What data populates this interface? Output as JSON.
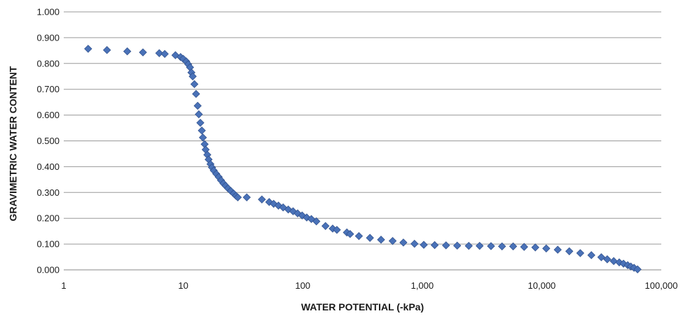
{
  "chart_data": {
    "type": "scatter",
    "x_scale": "log",
    "grid": "horizontal",
    "legend": "none",
    "marker_shape": "diamond",
    "marker_color": "#4a72b8",
    "xlabel": "WATER POTENTIAL (-kPa)",
    "ylabel": "GRAVIMETRIC WATER CONTENT",
    "xlim": [
      1,
      100000
    ],
    "ylim": [
      0,
      1
    ],
    "x_ticks": [
      1,
      10,
      100,
      1000,
      10000,
      100000
    ],
    "x_tick_labels": [
      "1",
      "10",
      "100",
      "1,000",
      "10,000",
      "100,000"
    ],
    "y_ticks": [
      0,
      0.1,
      0.2,
      0.3,
      0.4,
      0.5,
      0.6,
      0.7,
      0.8,
      0.9,
      1.0
    ],
    "y_tick_labels": [
      "0.000",
      "0.100",
      "0.200",
      "0.300",
      "0.400",
      "0.500",
      "0.600",
      "0.700",
      "0.800",
      "0.900",
      "1.000"
    ],
    "points": [
      [
        1.6,
        0.857
      ],
      [
        2.3,
        0.852
      ],
      [
        3.4,
        0.847
      ],
      [
        4.6,
        0.843
      ],
      [
        6.3,
        0.84
      ],
      [
        7.0,
        0.837
      ],
      [
        8.6,
        0.832
      ],
      [
        9.5,
        0.825
      ],
      [
        10.0,
        0.818
      ],
      [
        10.6,
        0.808
      ],
      [
        11.0,
        0.797
      ],
      [
        11.4,
        0.785
      ],
      [
        11.7,
        0.765
      ],
      [
        12.0,
        0.75
      ],
      [
        12.4,
        0.72
      ],
      [
        12.8,
        0.682
      ],
      [
        13.2,
        0.636
      ],
      [
        13.5,
        0.603
      ],
      [
        13.9,
        0.57
      ],
      [
        14.3,
        0.54
      ],
      [
        14.6,
        0.513
      ],
      [
        15.1,
        0.487
      ],
      [
        15.4,
        0.466
      ],
      [
        15.9,
        0.446
      ],
      [
        16.3,
        0.428
      ],
      [
        16.9,
        0.41
      ],
      [
        17.4,
        0.397
      ],
      [
        18.0,
        0.385
      ],
      [
        18.9,
        0.372
      ],
      [
        19.8,
        0.36
      ],
      [
        20.7,
        0.347
      ],
      [
        21.7,
        0.335
      ],
      [
        22.6,
        0.326
      ],
      [
        23.7,
        0.316
      ],
      [
        25.0,
        0.306
      ],
      [
        26.4,
        0.296
      ],
      [
        27.6,
        0.287
      ],
      [
        28.6,
        0.281
      ],
      [
        34.0,
        0.281
      ],
      [
        45.5,
        0.273
      ],
      [
        52.4,
        0.263
      ],
      [
        57.1,
        0.256
      ],
      [
        62.6,
        0.249
      ],
      [
        68.5,
        0.242
      ],
      [
        75.6,
        0.234
      ],
      [
        83.0,
        0.227
      ],
      [
        90.6,
        0.219
      ],
      [
        98.8,
        0.211
      ],
      [
        108,
        0.203
      ],
      [
        118,
        0.197
      ],
      [
        130,
        0.188
      ],
      [
        155,
        0.17
      ],
      [
        178,
        0.16
      ],
      [
        193,
        0.155
      ],
      [
        234,
        0.145
      ],
      [
        249,
        0.139
      ],
      [
        295,
        0.131
      ],
      [
        365,
        0.124
      ],
      [
        452,
        0.117
      ],
      [
        565,
        0.112
      ],
      [
        695,
        0.106
      ],
      [
        861,
        0.101
      ],
      [
        1030,
        0.097
      ],
      [
        1270,
        0.096
      ],
      [
        1580,
        0.095
      ],
      [
        1960,
        0.094
      ],
      [
        2450,
        0.093
      ],
      [
        3020,
        0.093
      ],
      [
        3760,
        0.092
      ],
      [
        4650,
        0.091
      ],
      [
        5760,
        0.091
      ],
      [
        7120,
        0.089
      ],
      [
        8830,
        0.087
      ],
      [
        10900,
        0.083
      ],
      [
        13600,
        0.078
      ],
      [
        17000,
        0.072
      ],
      [
        21000,
        0.065
      ],
      [
        26000,
        0.057
      ],
      [
        31500,
        0.049
      ],
      [
        35300,
        0.041
      ],
      [
        40000,
        0.034
      ],
      [
        44500,
        0.029
      ],
      [
        48300,
        0.024
      ],
      [
        52400,
        0.018
      ],
      [
        55600,
        0.013
      ],
      [
        59200,
        0.008
      ],
      [
        63300,
        0.002
      ]
    ]
  }
}
